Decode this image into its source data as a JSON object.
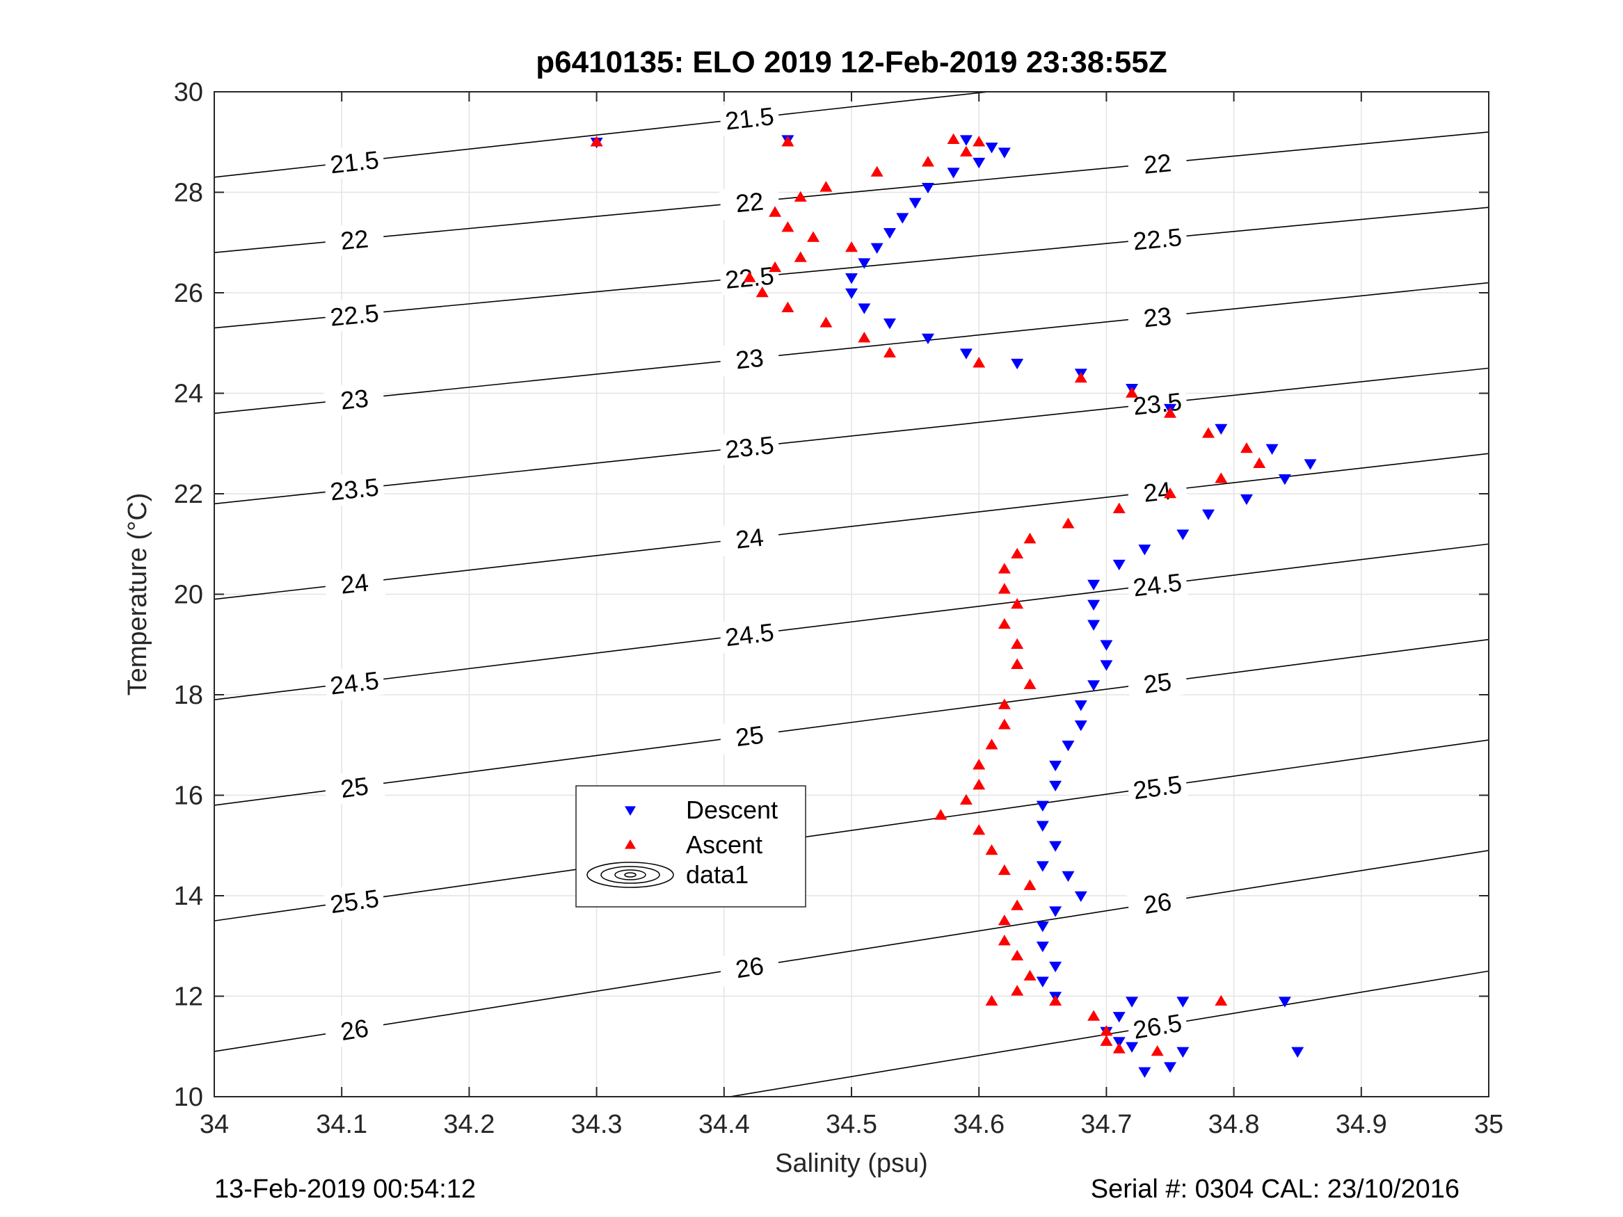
{
  "chart_data": {
    "type": "scatter",
    "title": "p6410135: ELO 2019 12-Feb-2019 23:38:55Z",
    "xlabel": "Salinity (psu)",
    "ylabel": "Temperature (°C)",
    "xlim": [
      34,
      35
    ],
    "ylim": [
      10,
      30
    ],
    "xticks": [
      "34",
      "34.1",
      "34.2",
      "34.3",
      "34.4",
      "34.5",
      "34.6",
      "34.7",
      "34.8",
      "34.9",
      "35"
    ],
    "yticks": [
      "10",
      "12",
      "14",
      "16",
      "18",
      "20",
      "22",
      "24",
      "26",
      "28",
      "30"
    ],
    "grid": true,
    "legend_position": "lower-left-center",
    "legend": [
      "Descent",
      "Ascent",
      "data1"
    ],
    "series": [
      {
        "name": "Descent",
        "marker": "down-triangle",
        "color": "#0000ff",
        "points": [
          [
            34.3,
            29.0
          ],
          [
            34.45,
            29.05
          ],
          [
            34.59,
            29.05
          ],
          [
            34.61,
            28.9
          ],
          [
            34.62,
            28.8
          ],
          [
            34.6,
            28.6
          ],
          [
            34.58,
            28.4
          ],
          [
            34.56,
            28.1
          ],
          [
            34.55,
            27.8
          ],
          [
            34.54,
            27.5
          ],
          [
            34.53,
            27.2
          ],
          [
            34.52,
            26.9
          ],
          [
            34.51,
            26.6
          ],
          [
            34.5,
            26.3
          ],
          [
            34.5,
            26.0
          ],
          [
            34.51,
            25.7
          ],
          [
            34.53,
            25.4
          ],
          [
            34.56,
            25.1
          ],
          [
            34.59,
            24.8
          ],
          [
            34.63,
            24.6
          ],
          [
            34.68,
            24.4
          ],
          [
            34.72,
            24.1
          ],
          [
            34.75,
            23.7
          ],
          [
            34.79,
            23.3
          ],
          [
            34.83,
            22.9
          ],
          [
            34.86,
            22.6
          ],
          [
            34.84,
            22.3
          ],
          [
            34.81,
            21.9
          ],
          [
            34.78,
            21.6
          ],
          [
            34.76,
            21.2
          ],
          [
            34.73,
            20.9
          ],
          [
            34.71,
            20.6
          ],
          [
            34.69,
            20.2
          ],
          [
            34.69,
            19.8
          ],
          [
            34.69,
            19.4
          ],
          [
            34.7,
            19.0
          ],
          [
            34.7,
            18.6
          ],
          [
            34.69,
            18.2
          ],
          [
            34.68,
            17.8
          ],
          [
            34.68,
            17.4
          ],
          [
            34.67,
            17.0
          ],
          [
            34.66,
            16.6
          ],
          [
            34.66,
            16.2
          ],
          [
            34.65,
            15.8
          ],
          [
            34.65,
            15.4
          ],
          [
            34.66,
            15.0
          ],
          [
            34.65,
            14.6
          ],
          [
            34.67,
            14.4
          ],
          [
            34.68,
            14.0
          ],
          [
            34.66,
            13.7
          ],
          [
            34.65,
            13.4
          ],
          [
            34.65,
            13.0
          ],
          [
            34.66,
            12.6
          ],
          [
            34.65,
            12.3
          ],
          [
            34.66,
            12.0
          ],
          [
            34.72,
            11.9
          ],
          [
            34.76,
            11.9
          ],
          [
            34.84,
            11.9
          ],
          [
            34.71,
            11.6
          ],
          [
            34.7,
            11.3
          ],
          [
            34.71,
            11.1
          ],
          [
            34.72,
            11.0
          ],
          [
            34.76,
            10.9
          ],
          [
            34.85,
            10.9
          ],
          [
            34.75,
            10.6
          ],
          [
            34.73,
            10.5
          ]
        ]
      },
      {
        "name": "Ascent",
        "marker": "up-triangle",
        "color": "#ff0000",
        "points": [
          [
            34.3,
            29.0
          ],
          [
            34.45,
            29.0
          ],
          [
            34.58,
            29.05
          ],
          [
            34.6,
            29.0
          ],
          [
            34.59,
            28.8
          ],
          [
            34.56,
            28.6
          ],
          [
            34.52,
            28.4
          ],
          [
            34.48,
            28.1
          ],
          [
            34.46,
            27.9
          ],
          [
            34.44,
            27.6
          ],
          [
            34.45,
            27.3
          ],
          [
            34.47,
            27.1
          ],
          [
            34.5,
            26.9
          ],
          [
            34.46,
            26.7
          ],
          [
            34.44,
            26.5
          ],
          [
            34.42,
            26.3
          ],
          [
            34.43,
            26.0
          ],
          [
            34.45,
            25.7
          ],
          [
            34.48,
            25.4
          ],
          [
            34.51,
            25.1
          ],
          [
            34.53,
            24.8
          ],
          [
            34.6,
            24.6
          ],
          [
            34.68,
            24.3
          ],
          [
            34.72,
            24.0
          ],
          [
            34.75,
            23.6
          ],
          [
            34.78,
            23.2
          ],
          [
            34.81,
            22.9
          ],
          [
            34.82,
            22.6
          ],
          [
            34.79,
            22.3
          ],
          [
            34.75,
            22.0
          ],
          [
            34.71,
            21.7
          ],
          [
            34.67,
            21.4
          ],
          [
            34.64,
            21.1
          ],
          [
            34.63,
            20.8
          ],
          [
            34.62,
            20.5
          ],
          [
            34.62,
            20.1
          ],
          [
            34.63,
            19.8
          ],
          [
            34.62,
            19.4
          ],
          [
            34.63,
            19.0
          ],
          [
            34.63,
            18.6
          ],
          [
            34.64,
            18.2
          ],
          [
            34.62,
            17.8
          ],
          [
            34.62,
            17.4
          ],
          [
            34.61,
            17.0
          ],
          [
            34.6,
            16.6
          ],
          [
            34.6,
            16.2
          ],
          [
            34.59,
            15.9
          ],
          [
            34.57,
            15.6
          ],
          [
            34.6,
            15.3
          ],
          [
            34.61,
            14.9
          ],
          [
            34.62,
            14.5
          ],
          [
            34.64,
            14.2
          ],
          [
            34.63,
            13.8
          ],
          [
            34.62,
            13.5
          ],
          [
            34.62,
            13.1
          ],
          [
            34.63,
            12.8
          ],
          [
            34.64,
            12.4
          ],
          [
            34.63,
            12.1
          ],
          [
            34.61,
            11.9
          ],
          [
            34.66,
            11.9
          ],
          [
            34.79,
            11.9
          ],
          [
            34.69,
            11.6
          ],
          [
            34.7,
            11.3
          ],
          [
            34.7,
            11.1
          ],
          [
            34.71,
            10.95
          ],
          [
            34.74,
            10.9
          ]
        ]
      }
    ],
    "contours": [
      {
        "level": "21.5",
        "t_at_34": 28.3,
        "t_at_35": 31.1
      },
      {
        "level": "22",
        "t_at_34": 26.8,
        "t_at_35": 29.2
      },
      {
        "level": "22.5",
        "t_at_34": 25.3,
        "t_at_35": 27.7
      },
      {
        "level": "23",
        "t_at_34": 23.6,
        "t_at_35": 26.2
      },
      {
        "level": "23.5",
        "t_at_34": 21.8,
        "t_at_35": 24.5
      },
      {
        "level": "24",
        "t_at_34": 19.9,
        "t_at_35": 22.8
      },
      {
        "level": "24.5",
        "t_at_34": 17.9,
        "t_at_35": 21.0
      },
      {
        "level": "25",
        "t_at_34": 15.8,
        "t_at_35": 19.1
      },
      {
        "level": "25.5",
        "t_at_34": 13.5,
        "t_at_35": 17.1
      },
      {
        "level": "26",
        "t_at_34": 10.9,
        "t_at_35": 14.9
      },
      {
        "level": "26.5",
        "t_at_34": 8.3,
        "t_at_35": 12.5
      }
    ]
  },
  "footer": {
    "timestamp": "13-Feb-2019 00:54:12",
    "serial": "Serial #: 0304  CAL: 23/10/2016"
  }
}
